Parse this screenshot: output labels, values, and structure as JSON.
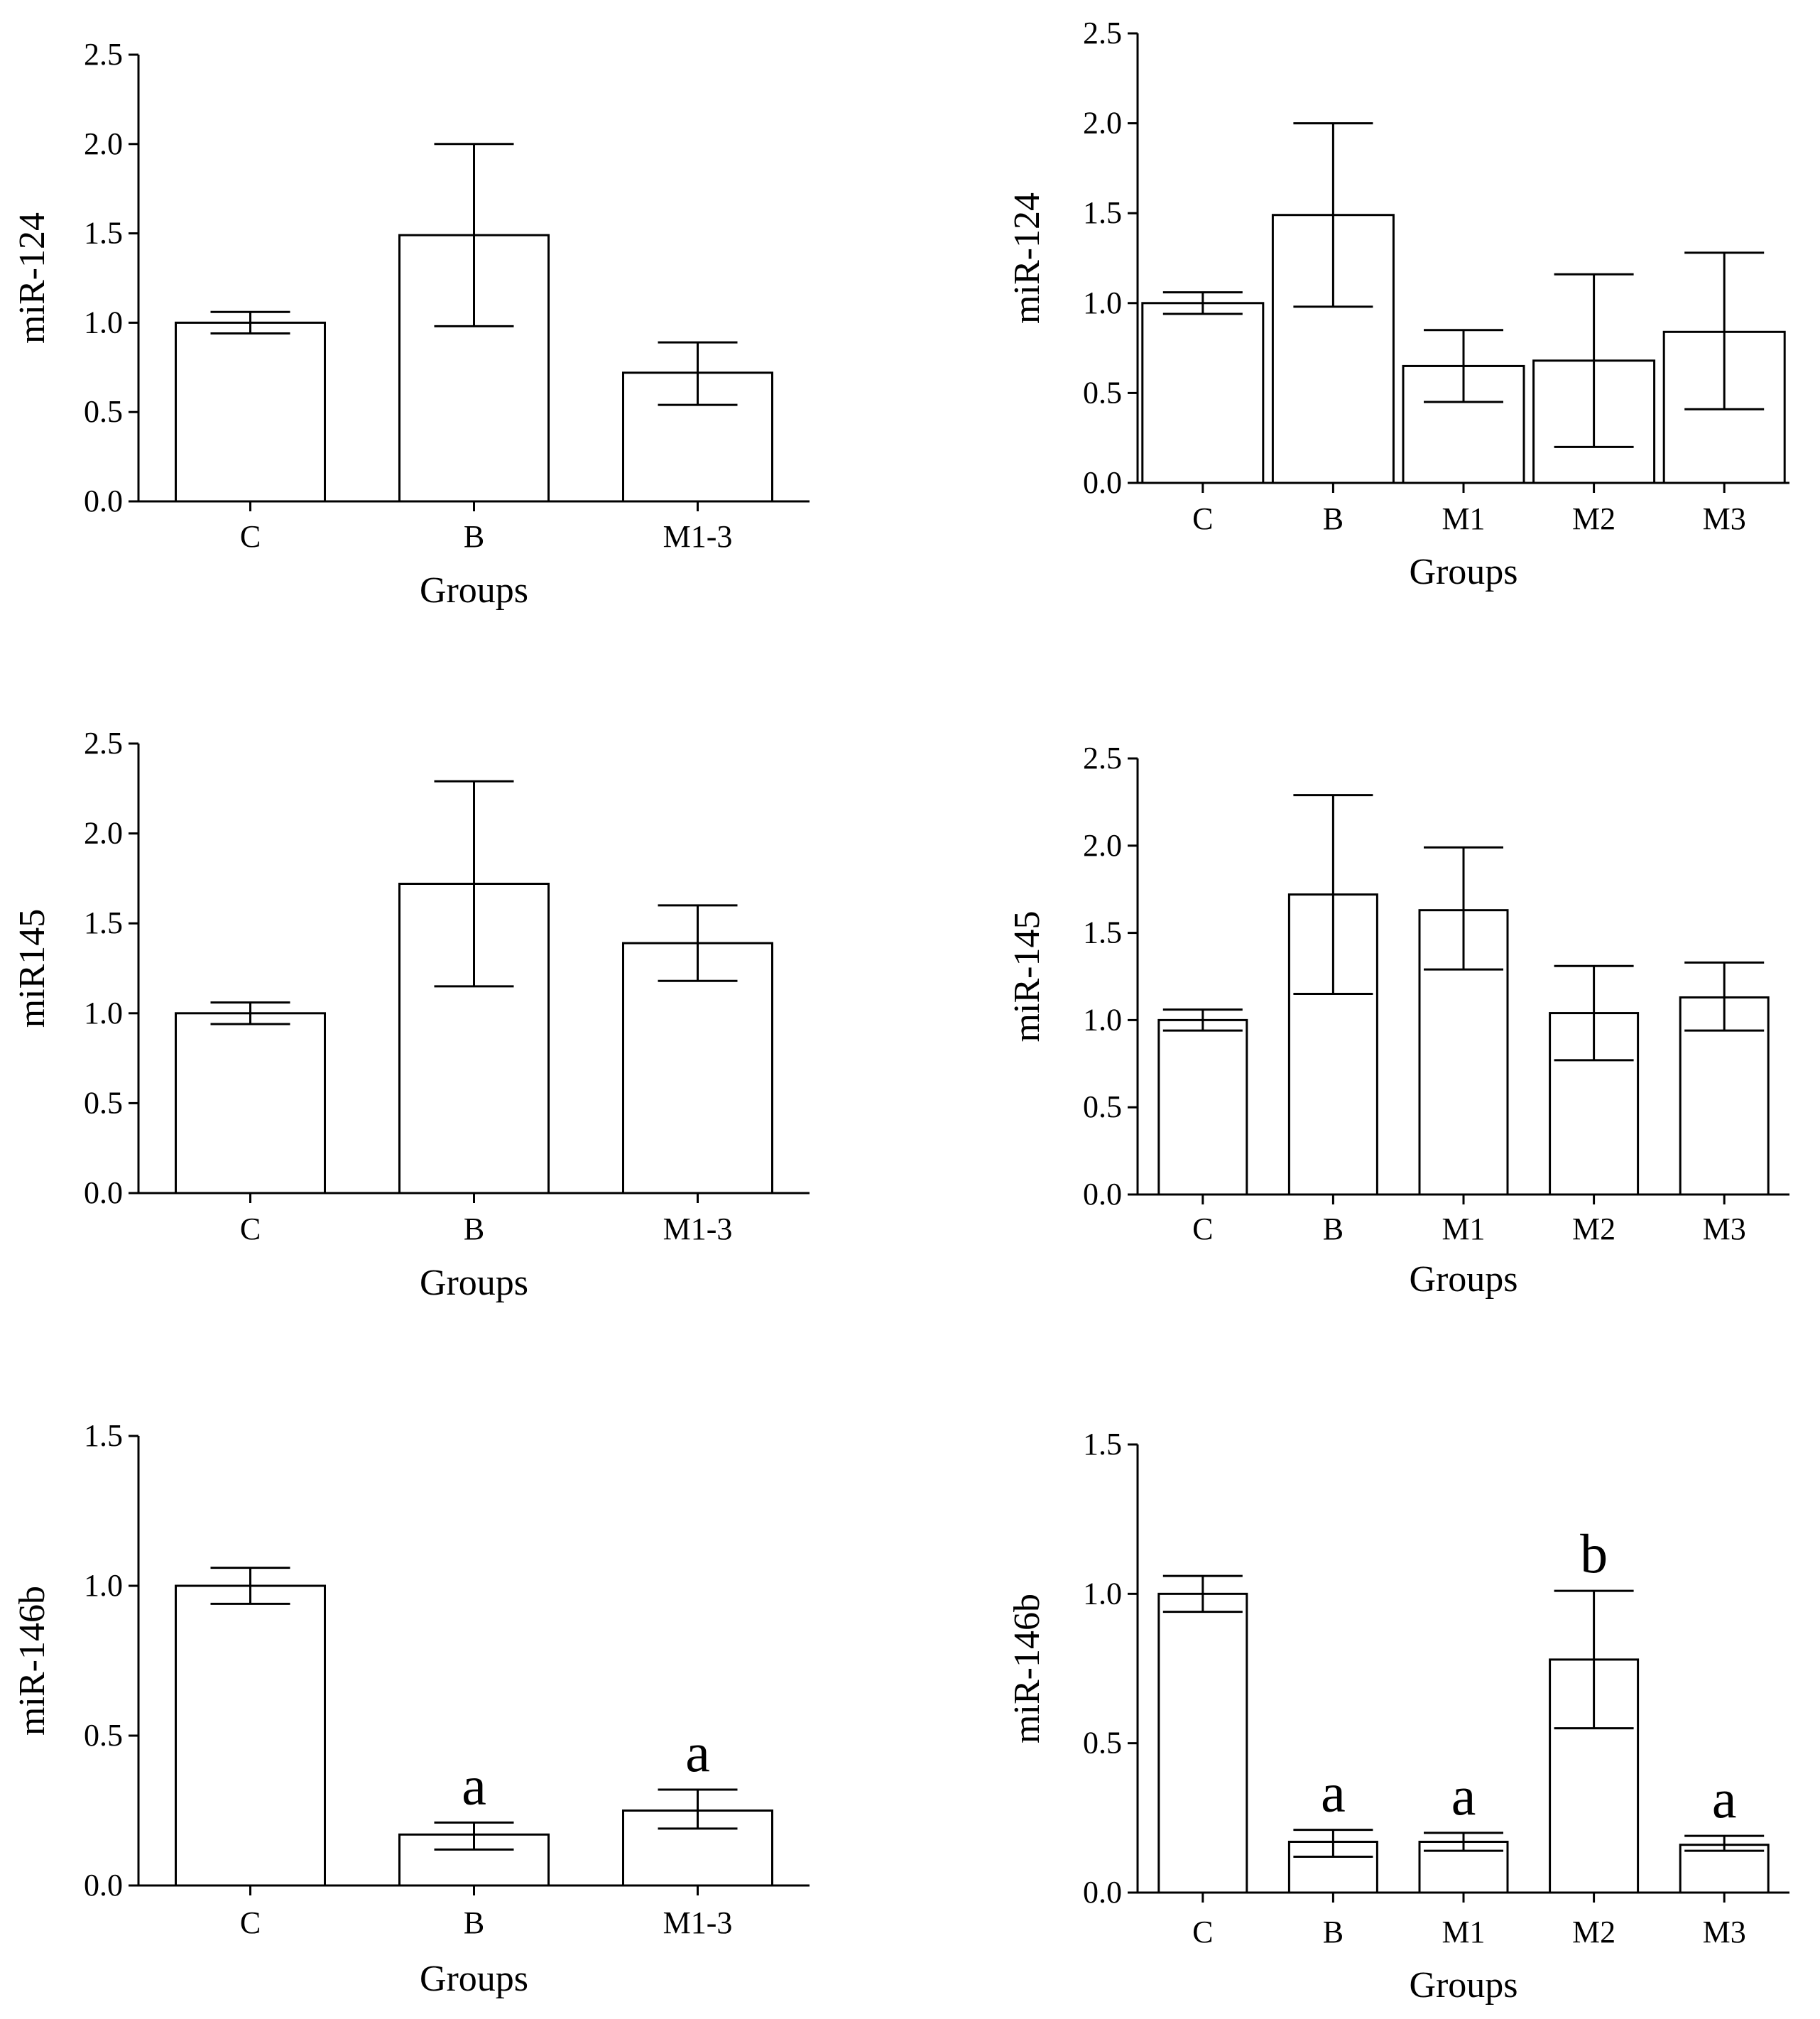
{
  "chart_data": [
    {
      "type": "bar",
      "panel": "top-left",
      "categories": [
        "C",
        "B",
        "M1-3"
      ],
      "values": [
        1.0,
        1.49,
        0.72
      ],
      "errors": [
        [
          0.94,
          1.06
        ],
        [
          0.98,
          2.0
        ],
        [
          0.54,
          0.89
        ]
      ],
      "annotations": [
        "",
        "",
        ""
      ],
      "yticks": [
        "0.0",
        "0.5",
        "1.0",
        "1.5",
        "2.0",
        "2.5"
      ],
      "ylim": [
        0,
        2.5
      ],
      "xlabel": "Groups",
      "ylabel": "miR-124"
    },
    {
      "type": "bar",
      "panel": "top-right",
      "categories": [
        "C",
        "B",
        "M1",
        "M2",
        "M3"
      ],
      "values": [
        1.0,
        1.49,
        0.65,
        0.68,
        0.84
      ],
      "errors": [
        [
          0.94,
          1.06
        ],
        [
          0.98,
          2.0
        ],
        [
          0.45,
          0.85
        ],
        [
          0.2,
          1.16
        ],
        [
          0.41,
          1.28
        ]
      ],
      "annotations": [
        "",
        "",
        "",
        "",
        ""
      ],
      "yticks": [
        "0.0",
        "0.5",
        "1.0",
        "1.5",
        "2.0",
        "2.5"
      ],
      "ylim": [
        0,
        2.5
      ],
      "xlabel": "Groups",
      "ylabel": "miR-124"
    },
    {
      "type": "bar",
      "panel": "middle-left",
      "categories": [
        "C",
        "B",
        "M1-3"
      ],
      "values": [
        1.0,
        1.72,
        1.39
      ],
      "errors": [
        [
          0.94,
          1.06
        ],
        [
          1.15,
          2.29
        ],
        [
          1.18,
          1.6
        ]
      ],
      "annotations": [
        "",
        "",
        ""
      ],
      "yticks": [
        "0.0",
        "0.5",
        "1.0",
        "1.5",
        "2.0",
        "2.5"
      ],
      "ylim": [
        0,
        2.5
      ],
      "xlabel": "Groups",
      "ylabel": "miR145"
    },
    {
      "type": "bar",
      "panel": "middle-right",
      "categories": [
        "C",
        "B",
        "M1",
        "M2",
        "M3"
      ],
      "values": [
        1.0,
        1.72,
        1.63,
        1.04,
        1.13
      ],
      "errors": [
        [
          0.94,
          1.06
        ],
        [
          1.15,
          2.29
        ],
        [
          1.29,
          1.99
        ],
        [
          0.77,
          1.31
        ],
        [
          0.94,
          1.33
        ]
      ],
      "annotations": [
        "",
        "",
        "",
        "",
        ""
      ],
      "yticks": [
        "0.0",
        "0.5",
        "1.0",
        "1.5",
        "2.0",
        "2.5"
      ],
      "ylim": [
        0,
        2.5
      ],
      "xlabel": "Groups",
      "ylabel": "miR-145"
    },
    {
      "type": "bar",
      "panel": "bottom-left",
      "categories": [
        "C",
        "B",
        "M1-3"
      ],
      "values": [
        1.0,
        0.17,
        0.25
      ],
      "errors": [
        [
          0.94,
          1.06
        ],
        [
          0.12,
          0.21
        ],
        [
          0.19,
          0.32
        ]
      ],
      "annotations": [
        "",
        "a",
        "a"
      ],
      "yticks": [
        "0.0",
        "0.5",
        "1.0",
        "1.5"
      ],
      "ylim": [
        0,
        1.5
      ],
      "xlabel": "Groups",
      "ylabel": "miR-146b"
    },
    {
      "type": "bar",
      "panel": "bottom-right",
      "categories": [
        "C",
        "B",
        "M1",
        "M2",
        "M3"
      ],
      "values": [
        1.0,
        0.17,
        0.17,
        0.78,
        0.16
      ],
      "errors": [
        [
          0.94,
          1.06
        ],
        [
          0.12,
          0.21
        ],
        [
          0.14,
          0.2
        ],
        [
          0.55,
          1.01
        ],
        [
          0.14,
          0.19
        ]
      ],
      "annotations": [
        "",
        "a",
        "a",
        "b",
        "a"
      ],
      "yticks": [
        "0.0",
        "0.5",
        "1.0",
        "1.5"
      ],
      "ylim": [
        0,
        1.5
      ],
      "xlabel": "Groups",
      "ylabel": "miR-146b"
    }
  ]
}
